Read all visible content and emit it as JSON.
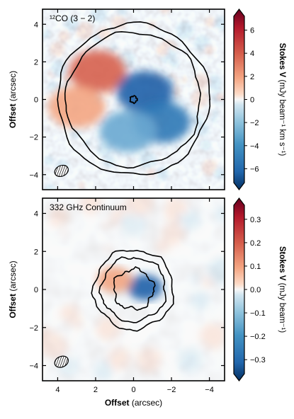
{
  "chart_data": [
    {
      "type": "heatmap",
      "title": "¹²CO (3 − 2)",
      "ylabel": "Offset (arcsec)",
      "xlim": [
        4.8,
        -4.8
      ],
      "ylim": [
        -4.8,
        4.8
      ],
      "xticks": [
        4,
        2,
        0,
        -2,
        -4
      ],
      "yticks": [
        4,
        2,
        0,
        -2,
        -4
      ],
      "colorbar": {
        "label": "Stokes V",
        "unit": "(mJy beam⁻¹ km s⁻¹)",
        "range": [
          -7.2,
          7.2
        ],
        "ticks": [
          6,
          4,
          2,
          0,
          -2,
          -4,
          -6
        ],
        "colormap": "RdBu_r"
      },
      "contours": [
        {
          "shape": "ring",
          "radius_arcsec": 4.0
        },
        {
          "shape": "ring",
          "radius_arcsec": 3.55
        },
        {
          "shape": "ring",
          "radius_arcsec": 0.18
        }
      ],
      "features": [
        {
          "sign": "positive",
          "x": 1.9,
          "y": 1.5,
          "value": 5.0
        },
        {
          "sign": "positive",
          "x": 3.0,
          "y": -0.4,
          "value": 3.0
        },
        {
          "sign": "negative",
          "x": -0.6,
          "y": 0.4,
          "value": -5.5
        },
        {
          "sign": "negative",
          "x": -1.5,
          "y": -1.2,
          "value": -4.5
        },
        {
          "sign": "negative",
          "x": 0.3,
          "y": -1.7,
          "value": -3.5
        }
      ],
      "beam": {
        "x": 3.8,
        "y": -3.8
      }
    },
    {
      "type": "heatmap",
      "title": "332 GHz Continuum",
      "xlabel": "Offset (arcsec)",
      "ylabel": "Offset (arcsec)",
      "xlim": [
        4.8,
        -4.8
      ],
      "ylim": [
        -4.8,
        4.8
      ],
      "xticks": [
        4,
        2,
        0,
        -2,
        -4
      ],
      "yticks": [
        4,
        2,
        0,
        -2,
        -4
      ],
      "colorbar": {
        "label": "Stokes V",
        "unit": "(mJy beam⁻¹)",
        "range": [
          -0.36,
          0.36
        ],
        "ticks": [
          0.3,
          0.2,
          0.1,
          0.0,
          -0.1,
          -0.2,
          -0.3
        ],
        "colormap": "RdBu_r"
      },
      "contours": [
        {
          "shape": "ring",
          "radius_arcsec": 2.1
        },
        {
          "shape": "ring",
          "radius_arcsec": 1.7
        },
        {
          "shape": "ring",
          "radius_arcsec": 1.05
        }
      ],
      "features": [
        {
          "sign": "negative",
          "x": -0.6,
          "y": 0.1,
          "value": -0.33
        },
        {
          "sign": "positive",
          "x": 1.0,
          "y": 0.5,
          "value": 0.12
        }
      ],
      "beam": {
        "x": 3.8,
        "y": -3.8
      }
    }
  ]
}
